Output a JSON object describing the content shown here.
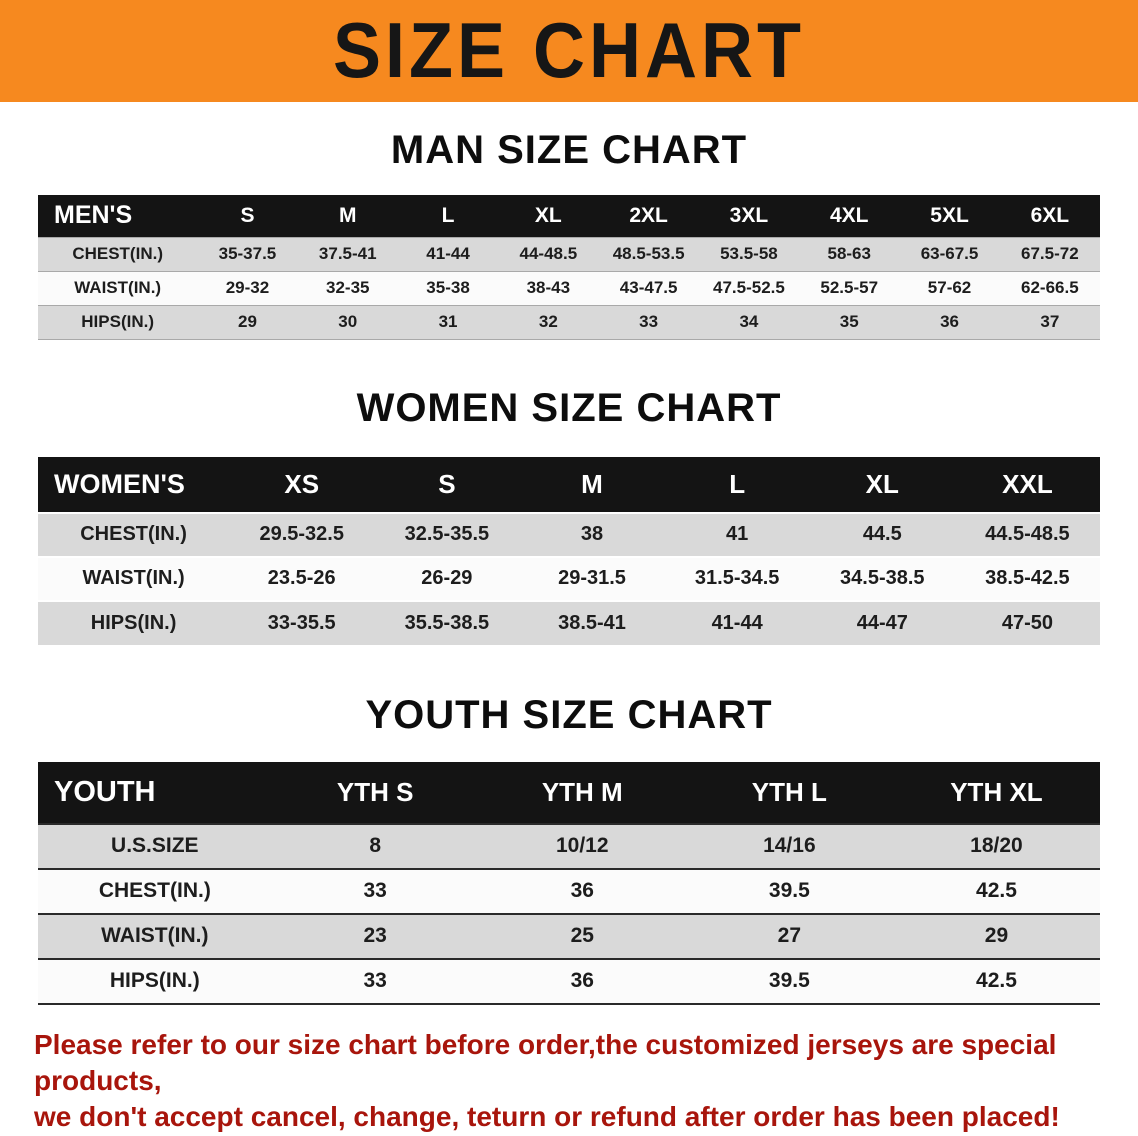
{
  "banner": {
    "title": "SIZE CHART",
    "bg_color": "#f6891f",
    "text_color": "#161616"
  },
  "sections": [
    {
      "heading": "MAN SIZE CHART",
      "header_label": "MEN'S",
      "columns": [
        "S",
        "M",
        "L",
        "XL",
        "2XL",
        "3XL",
        "4XL",
        "5XL",
        "6XL"
      ],
      "rows": [
        {
          "label": "CHEST(IN.)",
          "values": [
            "35-37.5",
            "37.5-41",
            "41-44",
            "44-48.5",
            "48.5-53.5",
            "53.5-58",
            "58-63",
            "63-67.5",
            "67.5-72"
          ]
        },
        {
          "label": "WAIST(IN.)",
          "values": [
            "29-32",
            "32-35",
            "35-38",
            "38-43",
            "43-47.5",
            "47.5-52.5",
            "52.5-57",
            "57-62",
            "62-66.5"
          ]
        },
        {
          "label": "HIPS(IN.)",
          "values": [
            "29",
            "30",
            "31",
            "32",
            "33",
            "34",
            "35",
            "36",
            "37"
          ]
        }
      ]
    },
    {
      "heading": "WOMEN SIZE CHART",
      "header_label": "WOMEN'S",
      "columns": [
        "XS",
        "S",
        "M",
        "L",
        "XL",
        "XXL"
      ],
      "rows": [
        {
          "label": "CHEST(IN.)",
          "values": [
            "29.5-32.5",
            "32.5-35.5",
            "38",
            "41",
            "44.5",
            "44.5-48.5"
          ]
        },
        {
          "label": "WAIST(IN.)",
          "values": [
            "23.5-26",
            "26-29",
            "29-31.5",
            "31.5-34.5",
            "34.5-38.5",
            "38.5-42.5"
          ]
        },
        {
          "label": "HIPS(IN.)",
          "values": [
            "33-35.5",
            "35.5-38.5",
            "38.5-41",
            "41-44",
            "44-47",
            "47-50"
          ]
        }
      ]
    },
    {
      "heading": "YOUTH SIZE CHART",
      "header_label": "YOUTH",
      "columns": [
        "YTH S",
        "YTH M",
        "YTH L",
        "YTH XL"
      ],
      "rows": [
        {
          "label": "U.S.SIZE",
          "values": [
            "8",
            "10/12",
            "14/16",
            "18/20"
          ]
        },
        {
          "label": "CHEST(IN.)",
          "values": [
            "33",
            "36",
            "39.5",
            "42.5"
          ]
        },
        {
          "label": "WAIST(IN.)",
          "values": [
            "23",
            "25",
            "27",
            "29"
          ]
        },
        {
          "label": "HIPS(IN.)",
          "values": [
            "33",
            "36",
            "39.5",
            "42.5"
          ]
        }
      ]
    }
  ],
  "footer": {
    "line1": "Please refer to our size chart before order,the customized jerseys are special products,",
    "line2": "we don't accept cancel, change, teturn or refund after order has been placed!",
    "text_color": "#a8150c"
  }
}
